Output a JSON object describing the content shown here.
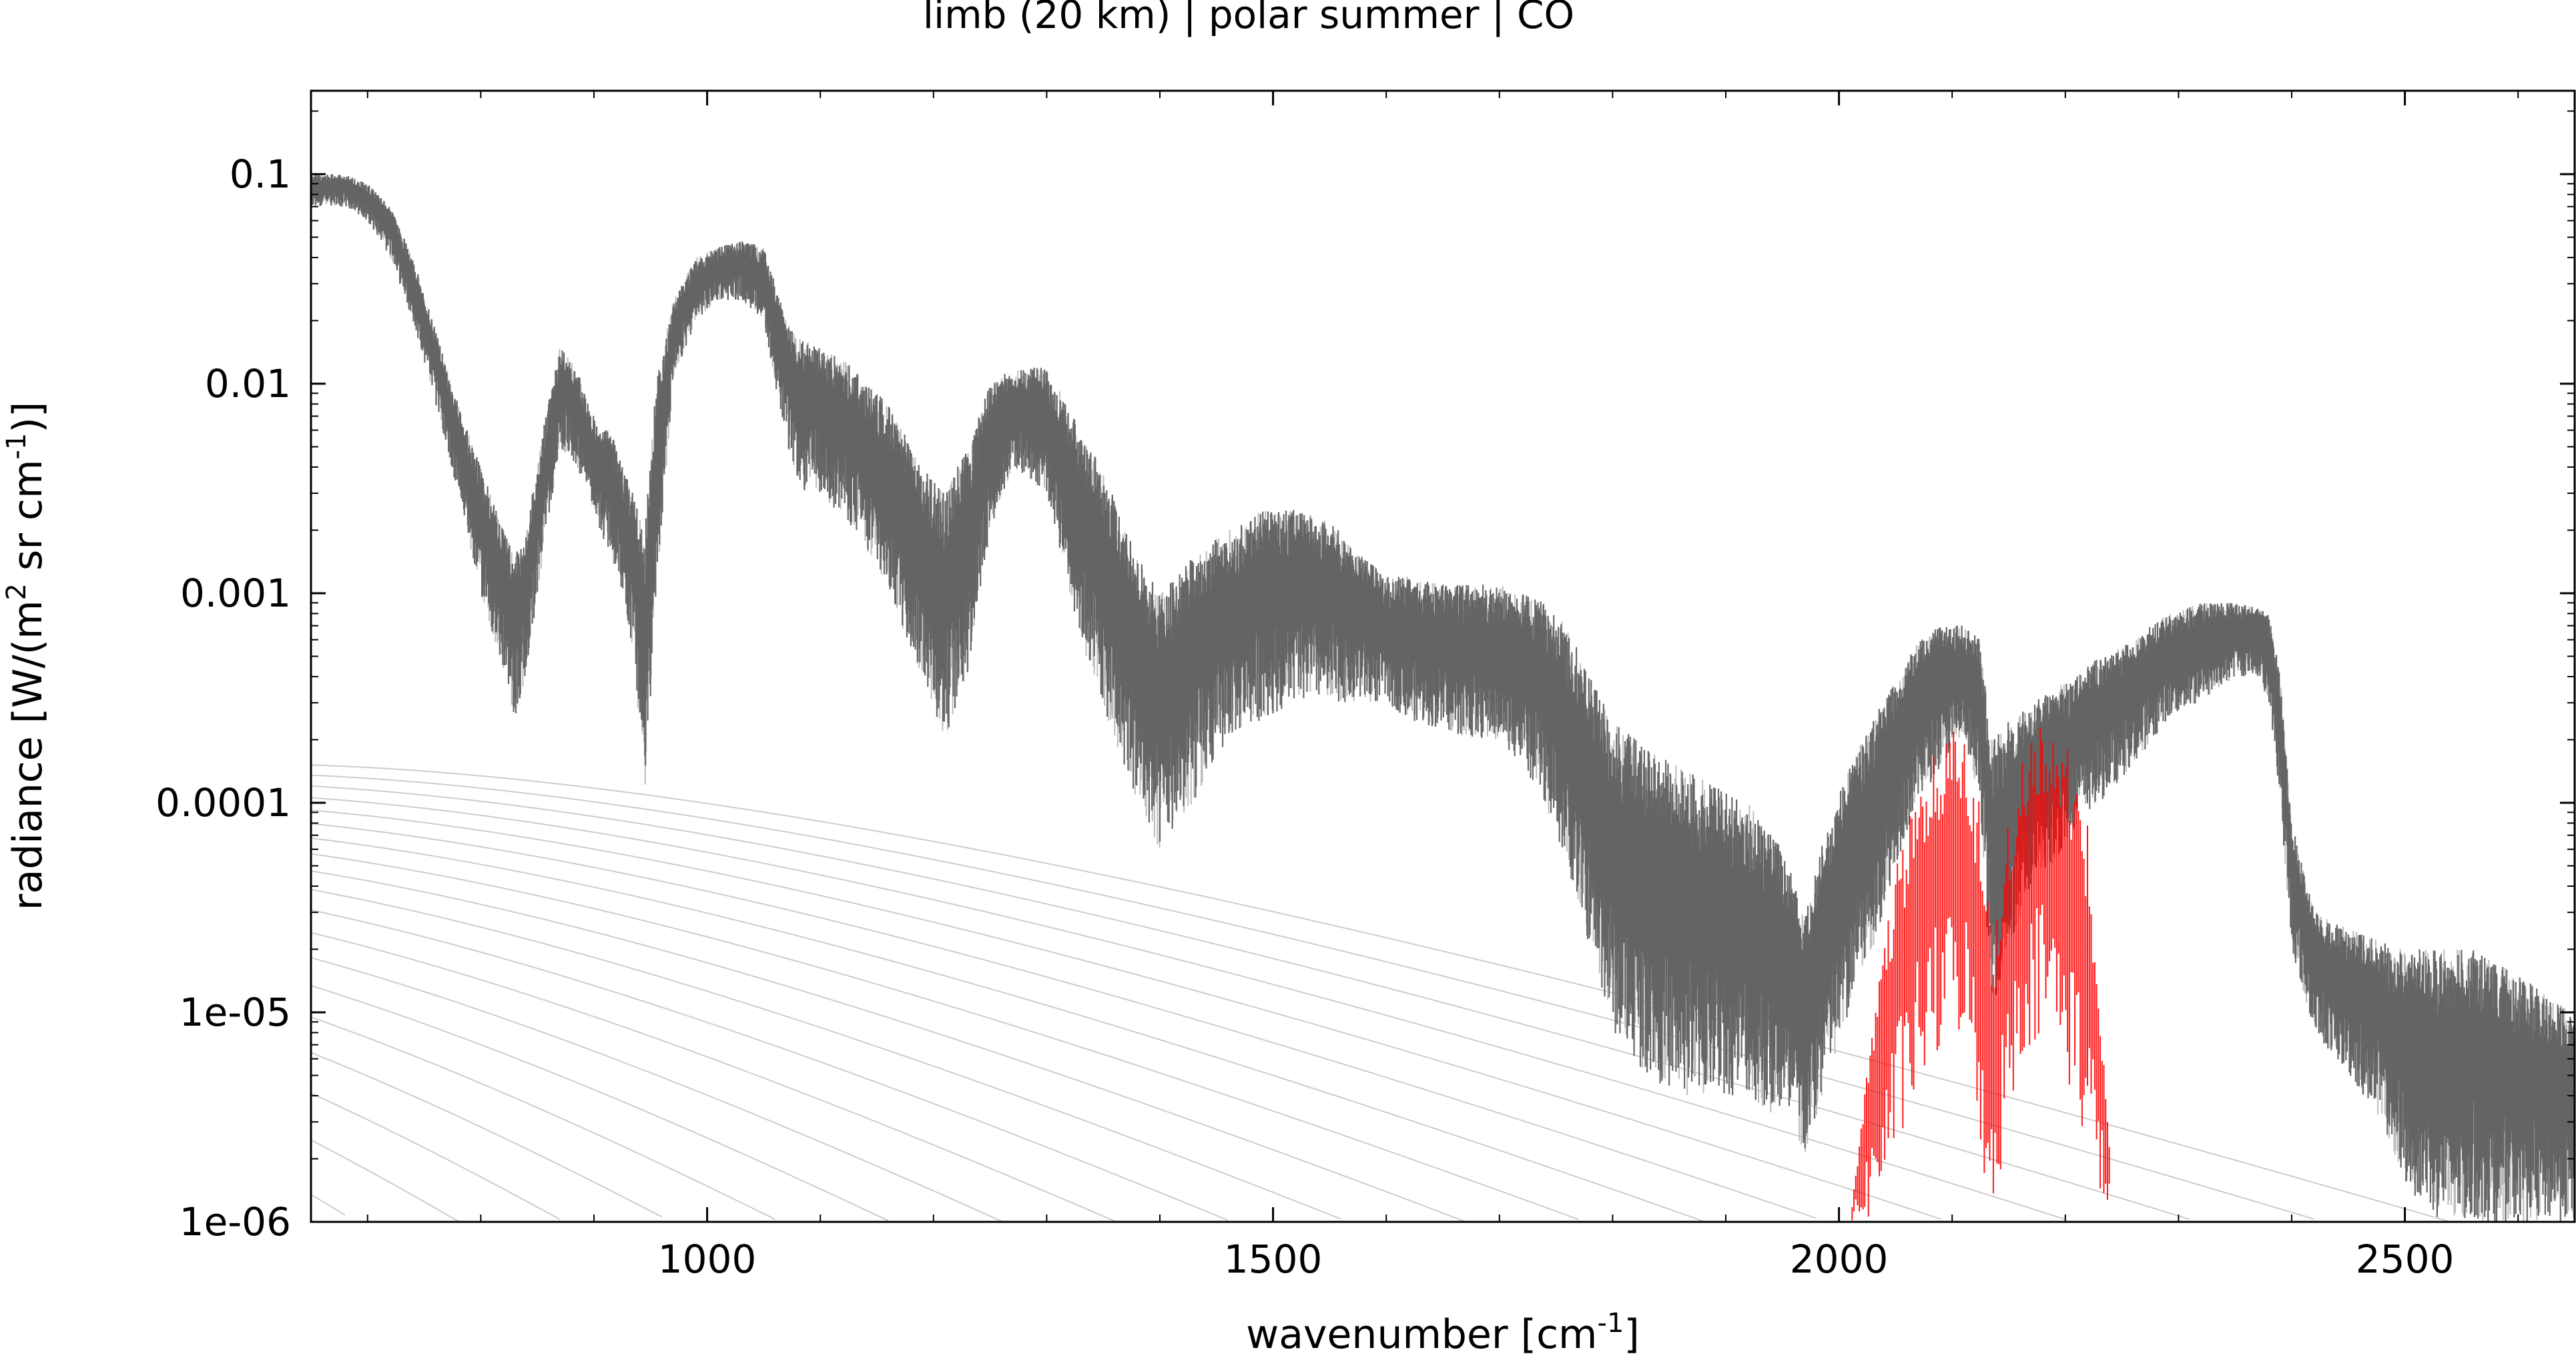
{
  "chart_data": {
    "type": "line",
    "title": "limb (20 km) | polar summer | CO",
    "xlabel": "wavenumber [cm-1]",
    "ylabel": "radiance [W/(m2 sr cm-1)]",
    "xlim": [
      650,
      2650
    ],
    "ylim": [
      1e-06,
      0.25
    ],
    "yscale": "log",
    "x_ticks": [
      1000,
      1500,
      2000,
      2500
    ],
    "x_tick_labels": [
      "1000",
      "1500",
      "2000",
      "2500"
    ],
    "y_ticks": [
      0.1,
      0.01,
      0.001,
      0.0001,
      1e-05,
      1e-06
    ],
    "y_tick_labels": [
      "0.1",
      "0.01",
      "0.001",
      "0.0001",
      "1e-05",
      "1e-06"
    ],
    "grid": false,
    "legend": "none",
    "colors": {
      "total": "#5f5f5f",
      "highlight": "#bcbcbc",
      "co": "#ff0000",
      "planck": "#c8c8c8",
      "frame": "#000000"
    },
    "series": [
      {
        "id": "total",
        "style": "dense-spectrum",
        "x": [
          650,
          680,
          700,
          720,
          740,
          760,
          780,
          800,
          820,
          830,
          840,
          855,
          870,
          885,
          895,
          905,
          915,
          925,
          935,
          945,
          955,
          970,
          990,
          1010,
          1030,
          1050,
          1070,
          1085,
          1100,
          1130,
          1160,
          1190,
          1210,
          1230,
          1250,
          1270,
          1300,
          1330,
          1360,
          1380,
          1400,
          1430,
          1460,
          1490,
          1520,
          1550,
          1580,
          1600,
          1620,
          1650,
          1680,
          1700,
          1720,
          1740,
          1760,
          1780,
          1800,
          1830,
          1860,
          1890,
          1920,
          1950,
          1970,
          1990,
          2010,
          2030,
          2050,
          2070,
          2090,
          2110,
          2125,
          2135,
          2150,
          2170,
          2190,
          2210,
          2230,
          2260,
          2290,
          2320,
          2350,
          2370,
          2380,
          2390,
          2400,
          2420,
          2450,
          2480,
          2500,
          2530,
          2560,
          2600,
          2650
        ],
        "upper": [
          0.1,
          0.1,
          0.09,
          0.07,
          0.04,
          0.018,
          0.008,
          0.004,
          0.002,
          0.0015,
          0.002,
          0.006,
          0.015,
          0.012,
          0.008,
          0.006,
          0.006,
          0.004,
          0.003,
          0.002,
          0.01,
          0.025,
          0.04,
          0.045,
          0.048,
          0.045,
          0.02,
          0.016,
          0.015,
          0.012,
          0.008,
          0.004,
          0.003,
          0.005,
          0.01,
          0.012,
          0.012,
          0.006,
          0.003,
          0.0015,
          0.001,
          0.0015,
          0.002,
          0.0025,
          0.0025,
          0.0022,
          0.0015,
          0.0012,
          0.0012,
          0.0011,
          0.0011,
          0.0011,
          0.001,
          0.0009,
          0.0007,
          0.0004,
          0.00025,
          0.00018,
          0.00015,
          0.00012,
          0.0001,
          6e-05,
          3e-05,
          8e-05,
          0.00015,
          0.00025,
          0.0004,
          0.0006,
          0.0007,
          0.0007,
          0.0006,
          0.0002,
          0.00025,
          0.0003,
          0.00035,
          0.0004,
          0.0005,
          0.0006,
          0.0008,
          0.0009,
          0.0009,
          0.00085,
          0.0008,
          0.0004,
          8e-05,
          3e-05,
          2.5e-05,
          2.2e-05,
          2e-05,
          2e-05,
          2e-05,
          1.5e-05,
          1e-05
        ],
        "lower": [
          0.07,
          0.07,
          0.06,
          0.04,
          0.02,
          0.008,
          0.003,
          0.001,
          0.0004,
          0.00025,
          0.0004,
          0.0015,
          0.005,
          0.004,
          0.003,
          0.002,
          0.0015,
          0.001,
          0.0005,
          0.0001,
          0.001,
          0.01,
          0.02,
          0.025,
          0.025,
          0.02,
          0.005,
          0.003,
          0.003,
          0.002,
          0.001,
          0.0004,
          0.0002,
          0.0004,
          0.002,
          0.004,
          0.003,
          0.0006,
          0.0002,
          0.0001,
          6e-05,
          0.0001,
          0.0002,
          0.00025,
          0.0003,
          0.0003,
          0.0003,
          0.0003,
          0.00025,
          0.00022,
          0.0002,
          0.0002,
          0.00015,
          0.0001,
          5e-05,
          2e-05,
          8e-06,
          5e-06,
          4e-06,
          4e-06,
          4e-06,
          3e-06,
          2e-06,
          5e-06,
          1e-05,
          2e-05,
          5e-05,
          0.0001,
          0.00015,
          0.0002,
          0.0001,
          1e-05,
          2e-05,
          4e-05,
          5e-05,
          8e-05,
          0.0001,
          0.00015,
          0.00025,
          0.0003,
          0.0004,
          0.0004,
          0.0003,
          0.0001,
          2e-05,
          8e-06,
          5e-06,
          3e-06,
          1.5e-06,
          1e-06,
          1e-06,
          1e-06,
          1e-06
        ]
      },
      {
        "id": "co",
        "style": "dense-lines",
        "x": [
          2010,
          2030,
          2050,
          2070,
          2090,
          2110,
          2125,
          2135,
          2145,
          2160,
          2180,
          2200,
          2220,
          2240
        ],
        "upper": [
          1e-06,
          1e-05,
          5e-05,
          0.00012,
          0.0002,
          0.00025,
          0.0001,
          2e-05,
          6e-05,
          0.00015,
          0.00025,
          0.0002,
          8e-05,
          2e-06
        ],
        "lower": [
          1e-06,
          1e-06,
          2e-06,
          4e-06,
          6e-06,
          8e-06,
          2e-06,
          1e-06,
          2e-06,
          6e-06,
          8e-06,
          5e-06,
          2e-06,
          1e-06
        ]
      }
    ],
    "reference_curves": {
      "type": "planck",
      "temperatures_K": [
        300,
        290,
        280,
        270,
        260,
        250,
        240,
        230,
        220,
        210,
        200,
        190,
        180,
        170,
        160,
        150,
        140,
        130,
        120,
        110,
        100
      ]
    }
  }
}
